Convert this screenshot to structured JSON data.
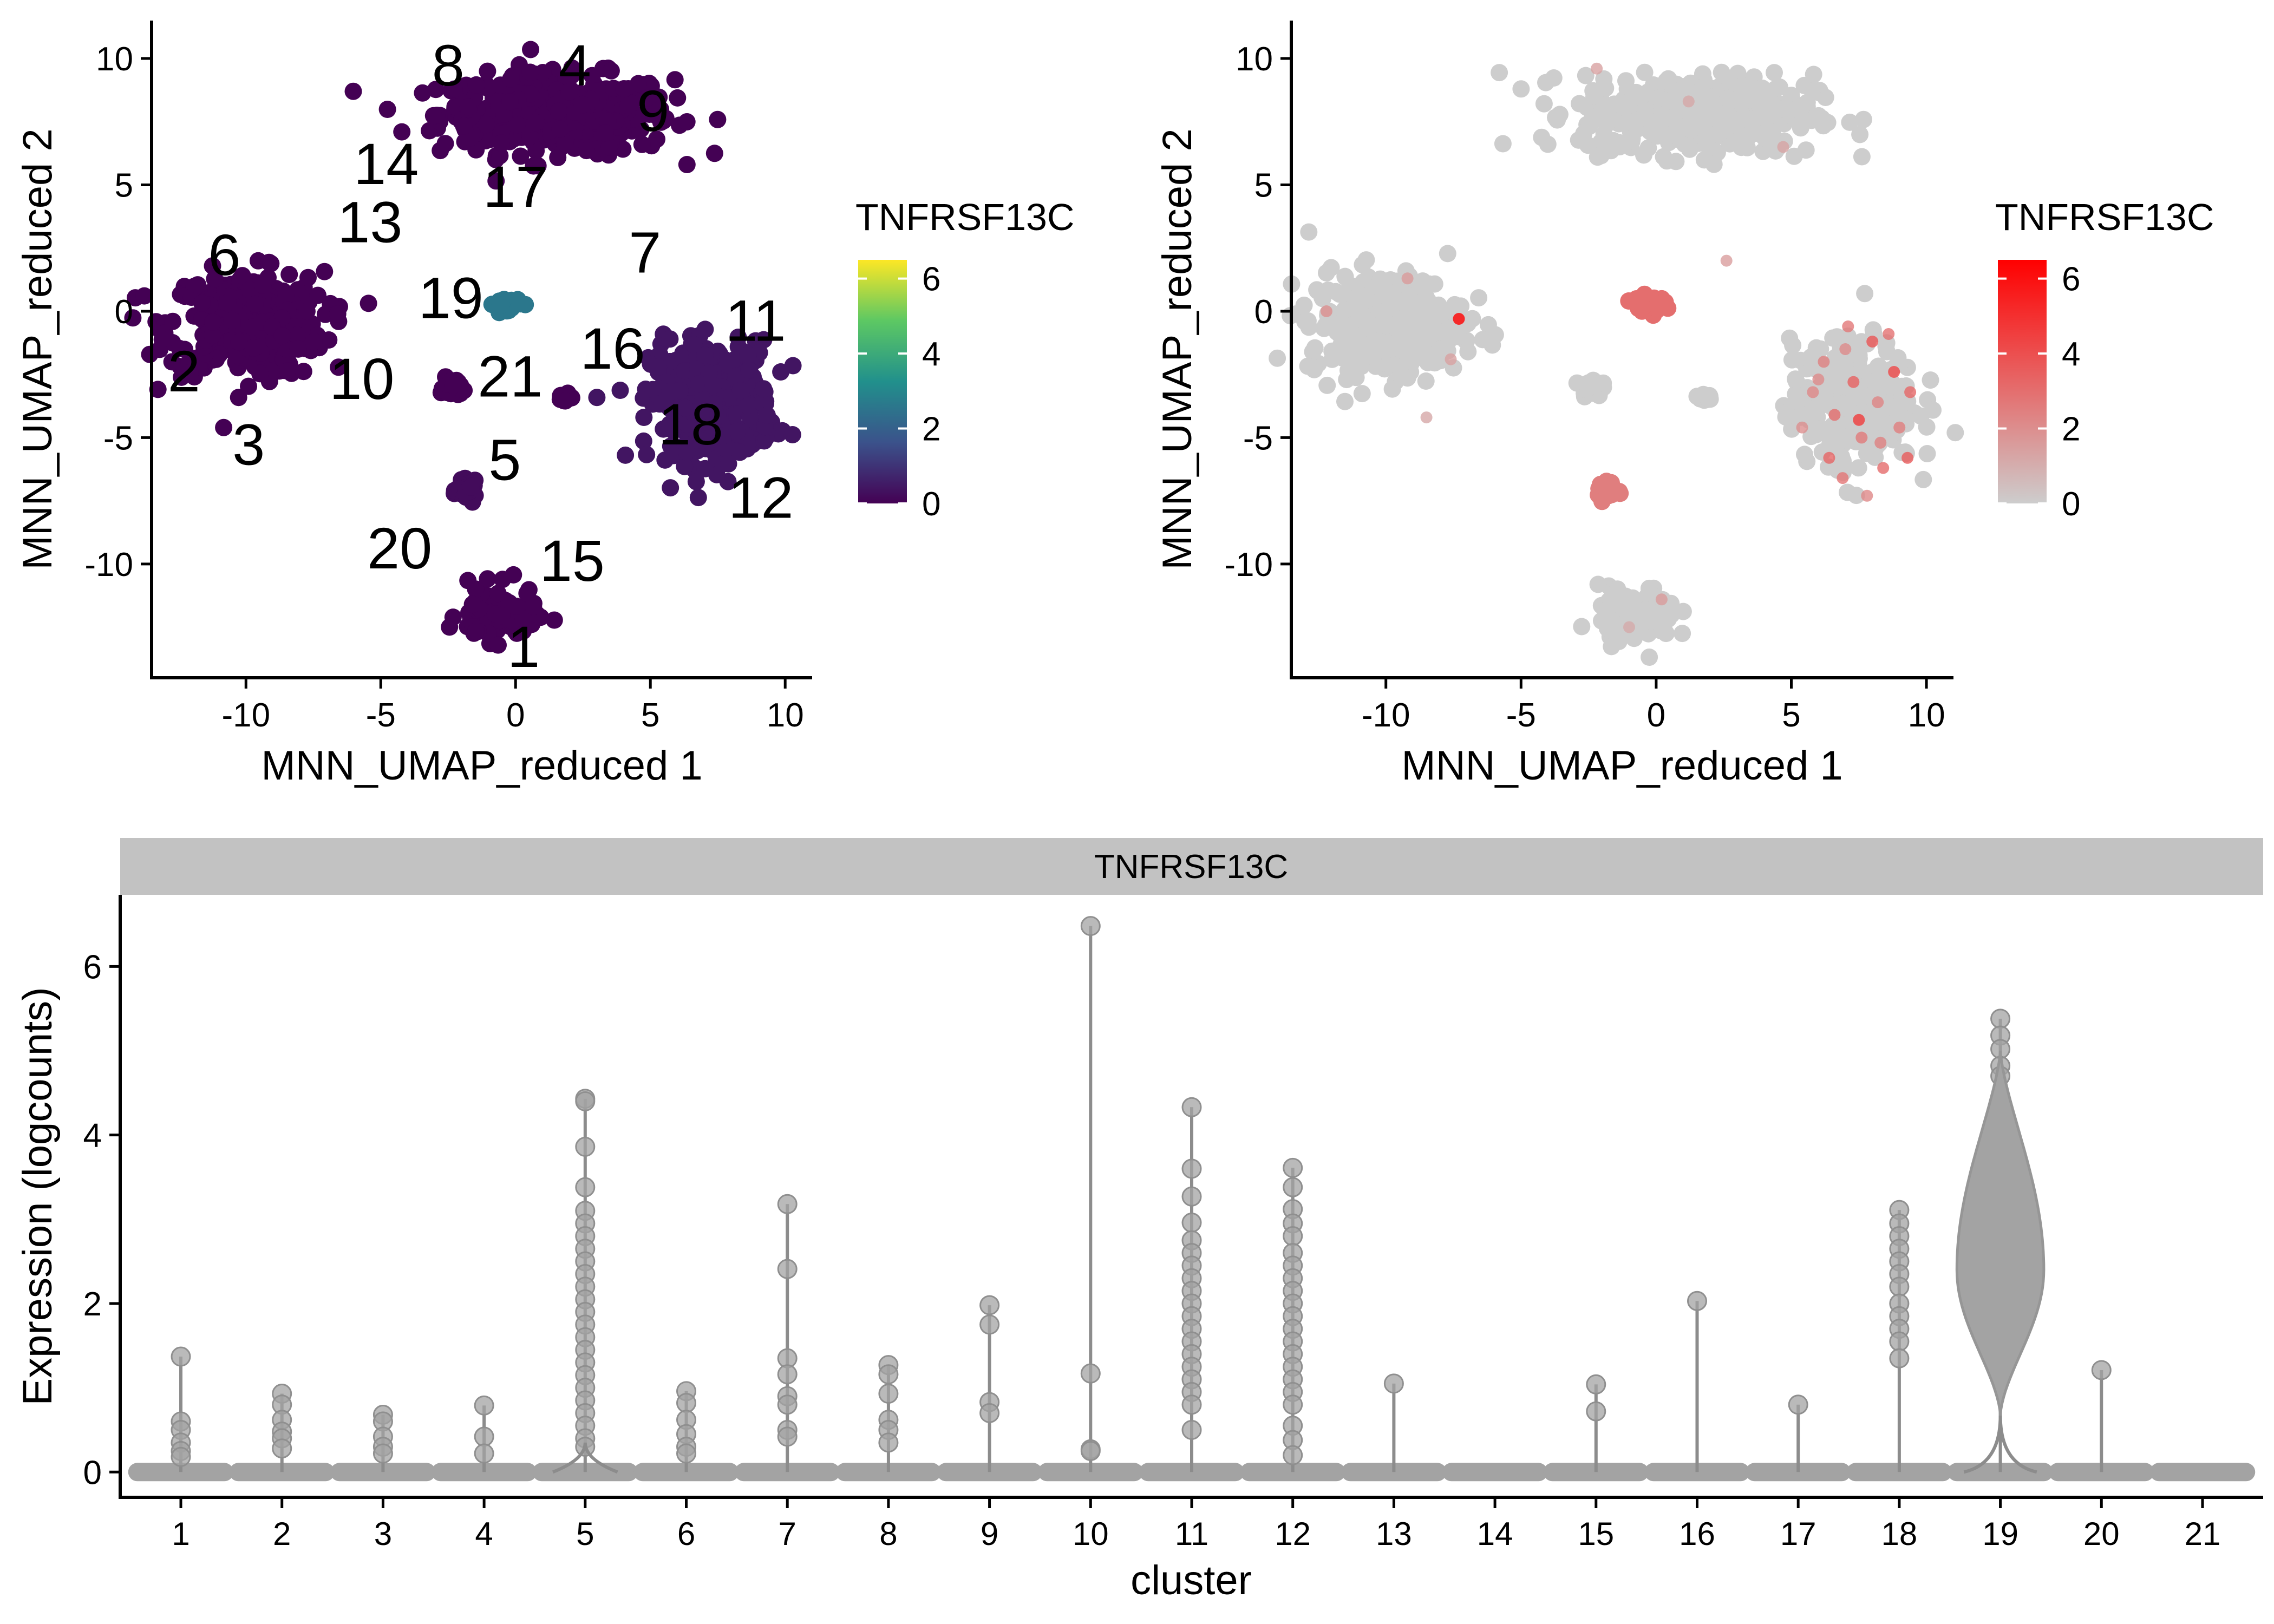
{
  "chart_data": [
    {
      "type": "scatter",
      "title": "",
      "xlabel": "MNN_UMAP_reduced 1",
      "ylabel": "MNN_UMAP_reduced 2",
      "xlim": [
        -13.5,
        11
      ],
      "ylim": [
        -14.5,
        11.5
      ],
      "xticks": [
        -10,
        -5,
        0,
        5,
        10
      ],
      "yticks": [
        -10,
        -5,
        0,
        5,
        10
      ],
      "xtick_labels": [
        "-10",
        "-5",
        "0",
        "5",
        "10"
      ],
      "ytick_labels": [
        "-10",
        "-5",
        "0",
        "5",
        "10"
      ],
      "grid": false,
      "legend_position": "right",
      "colorbar": {
        "title": "TNFRSF13C",
        "range": [
          0,
          6.5
        ],
        "ticks": [
          0,
          2,
          4,
          6
        ],
        "tick_labels": [
          "0",
          "2",
          "4",
          "6"
        ],
        "palette": "viridis",
        "colors": [
          "#440154",
          "#3b528b",
          "#21908c",
          "#5dc863",
          "#fde725"
        ]
      },
      "cluster_labels": [
        {
          "label": "8",
          "x": -2.5,
          "y": 9.7
        },
        {
          "label": "4",
          "x": 2.2,
          "y": 9.7
        },
        {
          "label": "9",
          "x": 5.1,
          "y": 7.9
        },
        {
          "label": "14",
          "x": -4.8,
          "y": 5.8
        },
        {
          "label": "17",
          "x": 0,
          "y": 4.9
        },
        {
          "label": "13",
          "x": -5.4,
          "y": 3.5
        },
        {
          "label": "6",
          "x": -10.8,
          "y": 2.2
        },
        {
          "label": "7",
          "x": 4.8,
          "y": 2.3
        },
        {
          "label": "19",
          "x": -2.4,
          "y": 0.5
        },
        {
          "label": "11",
          "x": 8.9,
          "y": -0.4
        },
        {
          "label": "16",
          "x": 3.6,
          "y": -1.5
        },
        {
          "label": "2",
          "x": -12.3,
          "y": -2.4
        },
        {
          "label": "10",
          "x": -5.7,
          "y": -2.7
        },
        {
          "label": "21",
          "x": -0.2,
          "y": -2.6
        },
        {
          "label": "18",
          "x": 6.5,
          "y": -4.5
        },
        {
          "label": "3",
          "x": -9.9,
          "y": -5.3
        },
        {
          "label": "5",
          "x": -0.4,
          "y": -5.9
        },
        {
          "label": "12",
          "x": 9.1,
          "y": -7.4
        },
        {
          "label": "20",
          "x": -4.3,
          "y": -9.4
        },
        {
          "label": "15",
          "x": 2.1,
          "y": -9.9
        },
        {
          "label": "1",
          "x": 0.3,
          "y": -13.3
        }
      ],
      "clusters": [
        {
          "id": "8/4/9/17/14",
          "cx": 1.5,
          "cy": 7.8,
          "sx": 3.6,
          "sy": 1.3,
          "value": 0
        },
        {
          "id": "6/2/10/3",
          "cx": -10,
          "cy": -0.5,
          "sx": 2.4,
          "sy": 1.7,
          "value": 0
        },
        {
          "id": "11/18/12",
          "cx": 7.3,
          "cy": -3.6,
          "sx": 1.9,
          "sy": 2.0,
          "value": 0.4
        },
        {
          "id": "19",
          "cx": -0.3,
          "cy": 0.3,
          "sx": 0.4,
          "sy": 0.2,
          "value": 2.6
        },
        {
          "id": "21",
          "cx": -2.4,
          "cy": -3.0,
          "sx": 0.3,
          "sy": 0.3,
          "value": 0
        },
        {
          "id": "16",
          "cx": 1.8,
          "cy": -3.4,
          "sx": 0.2,
          "sy": 0.1,
          "value": 0
        },
        {
          "id": "5",
          "cx": -1.8,
          "cy": -7.1,
          "sx": 0.3,
          "sy": 0.3,
          "value": 0.2
        },
        {
          "id": "1/20/15",
          "cx": -0.7,
          "cy": -12.0,
          "sx": 1.2,
          "sy": 0.9,
          "value": 0
        }
      ]
    },
    {
      "type": "scatter",
      "title": "",
      "xlabel": "MNN_UMAP_reduced 1",
      "ylabel": "MNN_UMAP_reduced 2",
      "xlim": [
        -13.5,
        11
      ],
      "ylim": [
        -14.5,
        11.5
      ],
      "xticks": [
        -10,
        -5,
        0,
        5,
        10
      ],
      "yticks": [
        -10,
        -5,
        0,
        5,
        10
      ],
      "xtick_labels": [
        "-10",
        "-5",
        "0",
        "5",
        "10"
      ],
      "ytick_labels": [
        "-10",
        "-5",
        "0",
        "5",
        "10"
      ],
      "grid": false,
      "legend_position": "right",
      "colorbar": {
        "title": "TNFRSF13C",
        "range": [
          0,
          6.5
        ],
        "ticks": [
          0,
          2,
          4,
          6
        ],
        "tick_labels": [
          "0",
          "2",
          "4",
          "6"
        ],
        "colors": [
          "#cdcdcd",
          "#ff0000"
        ]
      },
      "clusters": [
        {
          "id": "8/4/9/17/14",
          "cx": 1.5,
          "cy": 7.8,
          "sx": 3.6,
          "sy": 1.3,
          "value": 0
        },
        {
          "id": "6/2/10/3",
          "cx": -10,
          "cy": -0.5,
          "sx": 2.4,
          "sy": 1.7,
          "value": 0
        },
        {
          "id": "11/18/12",
          "cx": 7.3,
          "cy": -3.6,
          "sx": 1.9,
          "sy": 2.0,
          "value": 0
        },
        {
          "id": "19",
          "cx": -0.3,
          "cy": 0.3,
          "sx": 0.5,
          "sy": 0.25,
          "value": 3
        },
        {
          "id": "21",
          "cx": -2.4,
          "cy": -3.0,
          "sx": 0.3,
          "sy": 0.3,
          "value": 0
        },
        {
          "id": "16",
          "cx": 1.8,
          "cy": -3.4,
          "sx": 0.2,
          "sy": 0.1,
          "value": 0
        },
        {
          "id": "5",
          "cx": -1.8,
          "cy": -7.1,
          "sx": 0.3,
          "sy": 0.3,
          "value": 2.5
        },
        {
          "id": "1/20/15",
          "cx": -0.7,
          "cy": -12.0,
          "sx": 1.2,
          "sy": 0.9,
          "value": 0
        }
      ],
      "expressing_points": [
        {
          "x": 5.8,
          "y": -3.2,
          "value": 2.2
        },
        {
          "x": 6.2,
          "y": -2.0,
          "value": 2.4
        },
        {
          "x": 6.6,
          "y": -4.1,
          "value": 3.0
        },
        {
          "x": 7.0,
          "y": -1.5,
          "value": 2.1
        },
        {
          "x": 7.3,
          "y": -2.8,
          "value": 3.4
        },
        {
          "x": 7.6,
          "y": -5.0,
          "value": 2.6
        },
        {
          "x": 8.0,
          "y": -1.2,
          "value": 3.8
        },
        {
          "x": 8.2,
          "y": -3.6,
          "value": 2.3
        },
        {
          "x": 8.4,
          "y": -6.2,
          "value": 3.1
        },
        {
          "x": 8.8,
          "y": -2.4,
          "value": 4.2
        },
        {
          "x": 9.0,
          "y": -4.6,
          "value": 2.5
        },
        {
          "x": 9.3,
          "y": -5.8,
          "value": 3.6
        },
        {
          "x": 6.9,
          "y": -6.6,
          "value": 2.8
        },
        {
          "x": 7.8,
          "y": -7.3,
          "value": 2.2
        },
        {
          "x": 5.4,
          "y": -4.6,
          "value": 2.0
        },
        {
          "x": 6.4,
          "y": -5.8,
          "value": 3.3
        },
        {
          "x": 7.1,
          "y": -0.6,
          "value": 2.7
        },
        {
          "x": 8.6,
          "y": -0.9,
          "value": 2.9
        },
        {
          "x": 9.4,
          "y": -3.2,
          "value": 3.2
        },
        {
          "x": 7.5,
          "y": -4.3,
          "value": 4.6
        },
        {
          "x": 6.0,
          "y": -2.7,
          "value": 2.1
        },
        {
          "x": 8.3,
          "y": -5.2,
          "value": 2.4
        },
        {
          "x": -7.3,
          "y": -0.3,
          "value": 6.5
        },
        {
          "x": -12.2,
          "y": 0.0,
          "value": 2.0
        },
        {
          "x": -9.2,
          "y": 1.3,
          "value": 1.6
        },
        {
          "x": -7.6,
          "y": -1.9,
          "value": 1.4
        },
        {
          "x": -8.5,
          "y": -4.2,
          "value": 1.2
        },
        {
          "x": -2.2,
          "y": 9.6,
          "value": 1.4
        },
        {
          "x": 1.2,
          "y": 8.3,
          "value": 1.2
        },
        {
          "x": 4.7,
          "y": 6.5,
          "value": 1.3
        },
        {
          "x": 2.6,
          "y": 2.0,
          "value": 1.5
        },
        {
          "x": 0.2,
          "y": -11.4,
          "value": 1.6
        },
        {
          "x": -1.0,
          "y": -12.5,
          "value": 1.1
        }
      ]
    },
    {
      "type": "violin",
      "title": "",
      "facet_label": "TNFRSF13C",
      "xlabel": "cluster",
      "ylabel": "Expression (logcounts)",
      "ylim": [
        -0.3,
        6.85
      ],
      "yticks": [
        0,
        2,
        4,
        6
      ],
      "ytick_labels": [
        "0",
        "2",
        "4",
        "6"
      ],
      "grid": false,
      "categories": [
        "1",
        "2",
        "3",
        "4",
        "5",
        "6",
        "7",
        "8",
        "9",
        "10",
        "11",
        "12",
        "13",
        "14",
        "15",
        "16",
        "17",
        "18",
        "19",
        "20",
        "21"
      ],
      "max_values": [
        1.37,
        0.93,
        0.68,
        0.79,
        4.43,
        0.96,
        3.18,
        1.27,
        1.98,
        6.48,
        4.33,
        3.61,
        1.05,
        0,
        1.04,
        2.03,
        0.8,
        3.11,
        5.38,
        1.21,
        0
      ],
      "points": [
        [
          1.37,
          0.6,
          0.5,
          0.35,
          0.25,
          0.18
        ],
        [
          0.93,
          0.8,
          0.62,
          0.48,
          0.4,
          0.28
        ],
        [
          0.68,
          0.6,
          0.42,
          0.3,
          0.22
        ],
        [
          0.79,
          0.42,
          0.22
        ],
        [
          4.43,
          4.4,
          3.86,
          3.38,
          3.1,
          2.95,
          2.8,
          2.65,
          2.5,
          2.35,
          2.2,
          2.05,
          1.9,
          1.75,
          1.6,
          1.45,
          1.3,
          1.15,
          1.0,
          0.85,
          0.7,
          0.55,
          0.4,
          0.3
        ],
        [
          0.96,
          0.82,
          0.62,
          0.45,
          0.3,
          0.22
        ],
        [
          3.18,
          2.41,
          1.35,
          1.16,
          0.9,
          0.8,
          0.5,
          0.42
        ],
        [
          1.27,
          1.16,
          0.93,
          0.62,
          0.5,
          0.35
        ],
        [
          1.98,
          1.75,
          0.83,
          0.7
        ],
        [
          6.48,
          1.17,
          0.27,
          0.25
        ],
        [
          4.33,
          3.6,
          3.27,
          2.96,
          2.75,
          2.6,
          2.45,
          2.3,
          2.15,
          2.0,
          1.85,
          1.7,
          1.55,
          1.4,
          1.25,
          1.1,
          0.95,
          0.8,
          0.5
        ],
        [
          3.61,
          3.38,
          3.12,
          2.95,
          2.8,
          2.6,
          2.45,
          2.3,
          2.15,
          2.0,
          1.85,
          1.7,
          1.55,
          1.4,
          1.25,
          1.1,
          0.95,
          0.8,
          0.55,
          0.38,
          0.2
        ],
        [
          1.05
        ],
        [],
        [
          1.04,
          0.72
        ],
        [
          2.03
        ],
        [
          0.8
        ],
        [
          3.11,
          2.95,
          2.8,
          2.65,
          2.5,
          2.35,
          2.2,
          2.0,
          1.85,
          1.7,
          1.55,
          1.35
        ],
        [
          5.38,
          5.18,
          5.02,
          4.82,
          4.7
        ],
        [
          1.21
        ],
        []
      ],
      "violin_shape": {
        "category": "19",
        "min": 0.67,
        "max": 5.0,
        "center": 2.4,
        "half_width_cluster_units": 0.43
      }
    }
  ]
}
